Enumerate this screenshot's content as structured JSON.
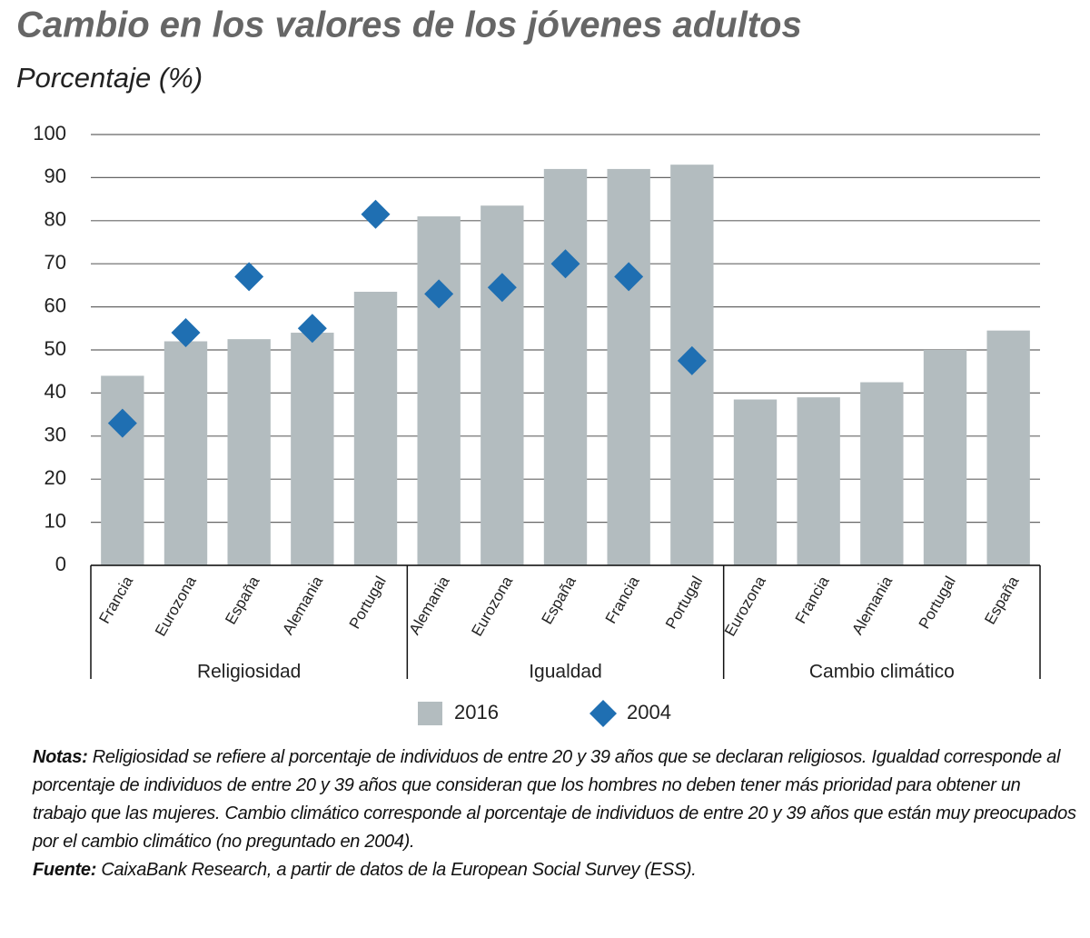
{
  "chart_data": {
    "type": "bar",
    "title": "Cambio en los valores de los jóvenes adultos",
    "subtitle": "Porcentaje (%)",
    "groups": [
      {
        "name": "Religiosidad",
        "categories": [
          "Francia",
          "Eurozona",
          "España",
          "Alemania",
          "Portugal"
        ]
      },
      {
        "name": "Igualdad",
        "categories": [
          "Alemania",
          "Eurozona",
          "España",
          "Francia",
          "Portugal"
        ]
      },
      {
        "name": "Cambio climático",
        "categories": [
          "Eurozona",
          "Francia",
          "Alemania",
          "Portugal",
          "España"
        ]
      }
    ],
    "series": [
      {
        "name": "2016",
        "type": "bar",
        "color": "#b3bcbf",
        "values": [
          44,
          52,
          52.5,
          54,
          63.5,
          81,
          83.5,
          92,
          92,
          93,
          38.5,
          39,
          42.5,
          50,
          54.5
        ]
      },
      {
        "name": "2004",
        "type": "scatter",
        "marker": "diamond",
        "color": "#1f6fb2",
        "values": [
          33,
          54,
          67,
          55,
          81.5,
          63,
          64.5,
          70,
          67,
          47.5,
          null,
          null,
          null,
          null,
          null
        ]
      }
    ],
    "ylim": [
      0,
      100
    ],
    "yticks": [
      0,
      10,
      20,
      30,
      40,
      50,
      60,
      70,
      80,
      90,
      100
    ],
    "grid": true
  },
  "notes": {
    "label": "Notas:",
    "text": "Religiosidad se refiere al porcentaje de individuos de entre 20 y 39 años que se declaran religiosos. Igualdad corresponde al porcentaje de individuos de entre 20 y 39 años que consideran que los hombres no deben tener más prioridad para obtener un trabajo que las mujeres. Cambio climático corresponde al porcentaje de individuos de entre 20 y 39 años que están muy preocupados por el cambio climático (no preguntado en 2004)."
  },
  "source": {
    "label": "Fuente:",
    "text": "CaixaBank Research, a partir de datos de la European Social Survey (ESS)."
  }
}
